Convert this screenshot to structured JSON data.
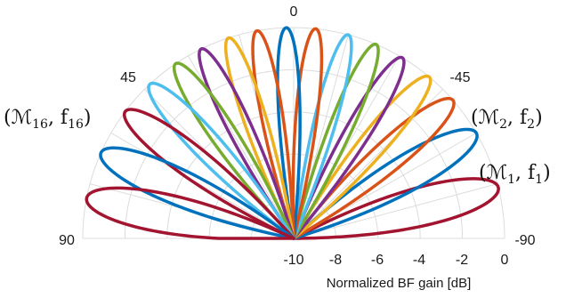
{
  "chart_data": {
    "type": "polar-line",
    "theta_range": [
      -90,
      90
    ],
    "r_range": [
      -10,
      0
    ],
    "angle_tick_labels": [
      "90",
      "45",
      "0",
      "-45",
      "-90"
    ],
    "radial_tick_labels": [
      "-10",
      "-8",
      "-6",
      "-4",
      "-2",
      "0"
    ],
    "rlabel": "Normalized BF gain [dB]",
    "grid": true,
    "annotations": [
      {
        "base": "(ℳ",
        "sub1": "16",
        "mid": ", f",
        "sub2": "16",
        "end": ")"
      },
      {
        "base": "(ℳ",
        "sub1": "2",
        "mid": ", f",
        "sub2": "2",
        "end": ")"
      },
      {
        "base": "(ℳ",
        "sub1": "1",
        "mid": ", f",
        "sub2": "1",
        "end": ")"
      }
    ],
    "series": [
      {
        "peak_deg": -76,
        "half_width_deg": 7.5,
        "color": "#a2142f"
      },
      {
        "peak_deg": -60,
        "half_width_deg": 7.0,
        "color": "#0072bd"
      },
      {
        "peak_deg": -49,
        "half_width_deg": 6.0,
        "color": "#d95319"
      },
      {
        "peak_deg": -40,
        "half_width_deg": 5.2,
        "color": "#edb120"
      },
      {
        "peak_deg": -31,
        "half_width_deg": 4.8,
        "color": "#7e2f8e"
      },
      {
        "peak_deg": -23,
        "half_width_deg": 4.5,
        "color": "#77ac30"
      },
      {
        "peak_deg": -15,
        "half_width_deg": 4.3,
        "color": "#4dbeee"
      },
      {
        "peak_deg": -6,
        "half_width_deg": 4.2,
        "color": "#d95319"
      },
      {
        "peak_deg": 2,
        "half_width_deg": 4.2,
        "color": "#0072bd"
      },
      {
        "peak_deg": 10,
        "half_width_deg": 4.2,
        "color": "#d95319"
      },
      {
        "peak_deg": 18,
        "half_width_deg": 4.4,
        "color": "#edb120"
      },
      {
        "peak_deg": 26,
        "half_width_deg": 4.6,
        "color": "#7e2f8e"
      },
      {
        "peak_deg": 34,
        "half_width_deg": 5.0,
        "color": "#77ac30"
      },
      {
        "peak_deg": 43,
        "half_width_deg": 5.5,
        "color": "#4dbeee"
      },
      {
        "peak_deg": 53,
        "half_width_deg": 6.2,
        "color": "#a2142f"
      },
      {
        "peak_deg": 66,
        "half_width_deg": 7.0,
        "color": "#0072bd"
      },
      {
        "peak_deg": 79,
        "half_width_deg": 7.5,
        "color": "#a2142f"
      }
    ]
  }
}
